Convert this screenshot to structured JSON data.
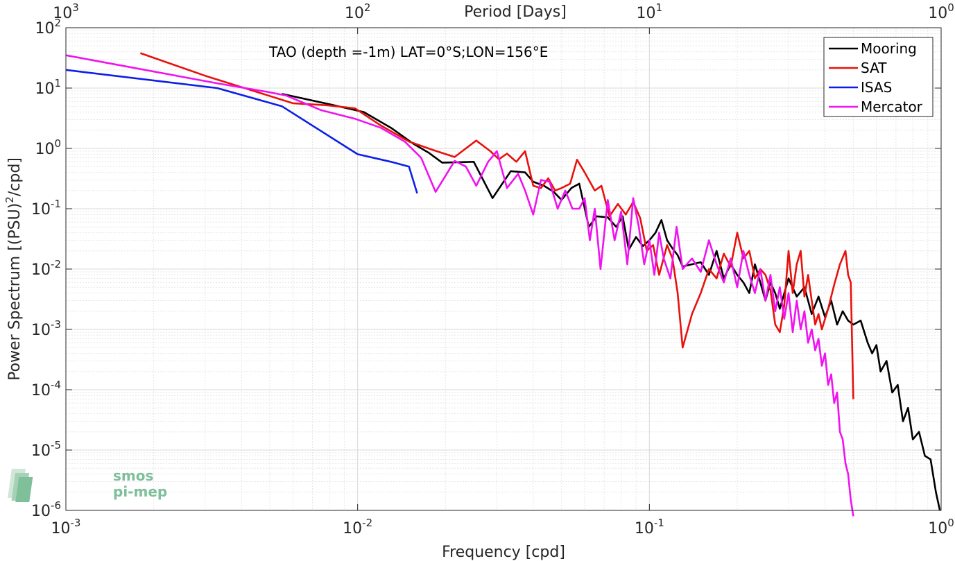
{
  "chart_data": {
    "type": "line",
    "annotation": "TAO (depth =-1m) LAT=0°S;LON=156°E",
    "xlabel": "Frequency [cpd]",
    "ylabel": "Power Spectrum [(PSU)",
    "ylabel_sup": "2",
    "ylabel_tail": "/cpd]",
    "top_label": "Period [Days]",
    "x_scale": "log",
    "y_scale": "log",
    "xlim": [
      0.001,
      1
    ],
    "ylim": [
      1e-06,
      100
    ],
    "grid": true,
    "legend_position": "top-right",
    "x_ticks": [
      {
        "base": "10",
        "exp": "-3",
        "value": 0.001
      },
      {
        "base": "10",
        "exp": "-2",
        "value": 0.01
      },
      {
        "base": "10",
        "exp": "-1",
        "value": 0.1
      },
      {
        "base": "10",
        "exp": "0",
        "value": 1
      }
    ],
    "top_ticks": [
      {
        "base": "10",
        "exp": "3",
        "value": 0.001
      },
      {
        "base": "10",
        "exp": "2",
        "value": 0.01
      },
      {
        "base": "10",
        "exp": "1",
        "value": 0.1
      },
      {
        "base": "10",
        "exp": "0",
        "value": 1
      }
    ],
    "y_ticks": [
      {
        "base": "10",
        "exp": "2",
        "value": 100
      },
      {
        "base": "10",
        "exp": "1",
        "value": 10
      },
      {
        "base": "10",
        "exp": "0",
        "value": 1
      },
      {
        "base": "10",
        "exp": "-1",
        "value": 0.1
      },
      {
        "base": "10",
        "exp": "-2",
        "value": 0.01
      },
      {
        "base": "10",
        "exp": "-3",
        "value": 0.001
      },
      {
        "base": "10",
        "exp": "-4",
        "value": 0.0001
      },
      {
        "base": "10",
        "exp": "-5",
        "value": 1e-05
      },
      {
        "base": "10",
        "exp": "-6",
        "value": 1e-06
      }
    ],
    "series": [
      {
        "name": "Mooring",
        "color": "#000000",
        "points": [
          [
            0.0055,
            8
          ],
          [
            0.008,
            5.4
          ],
          [
            0.0105,
            4
          ],
          [
            0.013,
            2.2
          ],
          [
            0.0155,
            1.2
          ],
          [
            0.0175,
            0.85
          ],
          [
            0.0195,
            0.58
          ],
          [
            0.025,
            0.6
          ],
          [
            0.029,
            0.15
          ],
          [
            0.0335,
            0.42
          ],
          [
            0.0375,
            0.4
          ],
          [
            0.04,
            0.28
          ],
          [
            0.0435,
            0.24
          ],
          [
            0.047,
            0.19
          ],
          [
            0.05,
            0.14
          ],
          [
            0.054,
            0.22
          ],
          [
            0.0575,
            0.26
          ],
          [
            0.062,
            0.05
          ],
          [
            0.066,
            0.075
          ],
          [
            0.072,
            0.072
          ],
          [
            0.077,
            0.05
          ],
          [
            0.081,
            0.075
          ],
          [
            0.085,
            0.021
          ],
          [
            0.09,
            0.034
          ],
          [
            0.095,
            0.024
          ],
          [
            0.1,
            0.03
          ],
          [
            0.105,
            0.04
          ],
          [
            0.11,
            0.065
          ],
          [
            0.115,
            0.03
          ],
          [
            0.12,
            0.022
          ],
          [
            0.125,
            0.017
          ],
          [
            0.13,
            0.011
          ],
          [
            0.14,
            0.012
          ],
          [
            0.15,
            0.013
          ],
          [
            0.16,
            0.008
          ],
          [
            0.17,
            0.02
          ],
          [
            0.18,
            0.007
          ],
          [
            0.19,
            0.012
          ],
          [
            0.2,
            0.008
          ],
          [
            0.21,
            0.006
          ],
          [
            0.22,
            0.004
          ],
          [
            0.23,
            0.012
          ],
          [
            0.24,
            0.006
          ],
          [
            0.25,
            0.003
          ],
          [
            0.26,
            0.006
          ],
          [
            0.27,
            0.004
          ],
          [
            0.28,
            0.0022
          ],
          [
            0.3,
            0.007
          ],
          [
            0.32,
            0.0035
          ],
          [
            0.34,
            0.005
          ],
          [
            0.36,
            0.0018
          ],
          [
            0.38,
            0.0035
          ],
          [
            0.4,
            0.0016
          ],
          [
            0.42,
            0.003
          ],
          [
            0.44,
            0.0012
          ],
          [
            0.46,
            0.002
          ],
          [
            0.48,
            0.0014
          ],
          [
            0.5,
            0.0012
          ],
          [
            0.53,
            0.0014
          ],
          [
            0.56,
            0.0006
          ],
          [
            0.58,
            0.0004
          ],
          [
            0.6,
            0.00055
          ],
          [
            0.62,
            0.0002
          ],
          [
            0.65,
            0.0003
          ],
          [
            0.68,
            9e-05
          ],
          [
            0.71,
            0.00012
          ],
          [
            0.74,
            3e-05
          ],
          [
            0.77,
            5e-05
          ],
          [
            0.8,
            1.5e-05
          ],
          [
            0.84,
            2e-05
          ],
          [
            0.88,
            8e-06
          ],
          [
            0.92,
            7e-06
          ],
          [
            0.96,
            2e-06
          ],
          [
            0.99,
            1e-06
          ]
        ]
      },
      {
        "name": "SAT",
        "color": "#e8110c",
        "points": [
          [
            0.0018,
            38
          ],
          [
            0.003,
            16
          ],
          [
            0.006,
            5.6
          ],
          [
            0.0078,
            5.2
          ],
          [
            0.0098,
            4.6
          ],
          [
            0.012,
            2.4
          ],
          [
            0.015,
            1.3
          ],
          [
            0.018,
            0.95
          ],
          [
            0.0215,
            0.72
          ],
          [
            0.0255,
            1.35
          ],
          [
            0.0285,
            0.9
          ],
          [
            0.0305,
            0.66
          ],
          [
            0.0325,
            0.82
          ],
          [
            0.035,
            0.6
          ],
          [
            0.0375,
            0.9
          ],
          [
            0.04,
            0.24
          ],
          [
            0.0425,
            0.22
          ],
          [
            0.045,
            0.32
          ],
          [
            0.0475,
            0.2
          ],
          [
            0.05,
            0.22
          ],
          [
            0.0535,
            0.26
          ],
          [
            0.0565,
            0.65
          ],
          [
            0.06,
            0.4
          ],
          [
            0.065,
            0.2
          ],
          [
            0.0685,
            0.24
          ],
          [
            0.073,
            0.075
          ],
          [
            0.078,
            0.12
          ],
          [
            0.083,
            0.08
          ],
          [
            0.088,
            0.13
          ],
          [
            0.093,
            0.07
          ],
          [
            0.098,
            0.02
          ],
          [
            0.103,
            0.025
          ],
          [
            0.108,
            0.008
          ],
          [
            0.115,
            0.025
          ],
          [
            0.12,
            0.015
          ],
          [
            0.125,
            0.004
          ],
          [
            0.13,
            0.0005
          ],
          [
            0.14,
            0.0018
          ],
          [
            0.15,
            0.004
          ],
          [
            0.16,
            0.01
          ],
          [
            0.17,
            0.007
          ],
          [
            0.18,
            0.018
          ],
          [
            0.19,
            0.011
          ],
          [
            0.2,
            0.04
          ],
          [
            0.21,
            0.015
          ],
          [
            0.22,
            0.02
          ],
          [
            0.23,
            0.007
          ],
          [
            0.24,
            0.01
          ],
          [
            0.25,
            0.008
          ],
          [
            0.26,
            0.0045
          ],
          [
            0.27,
            0.0012
          ],
          [
            0.28,
            0.0009
          ],
          [
            0.29,
            0.0025
          ],
          [
            0.3,
            0.02
          ],
          [
            0.31,
            0.004
          ],
          [
            0.32,
            0.012
          ],
          [
            0.33,
            0.02
          ],
          [
            0.34,
            0.0035
          ],
          [
            0.35,
            0.008
          ],
          [
            0.36,
            0.003
          ],
          [
            0.37,
            0.0012
          ],
          [
            0.38,
            0.0018
          ],
          [
            0.39,
            0.001
          ],
          [
            0.41,
            0.0022
          ],
          [
            0.43,
            0.0055
          ],
          [
            0.45,
            0.012
          ],
          [
            0.47,
            0.02
          ],
          [
            0.48,
            0.008
          ],
          [
            0.49,
            0.006
          ],
          [
            0.5,
            7e-05
          ]
        ]
      },
      {
        "name": "ISAS",
        "color": "#0c1ee8",
        "points": [
          [
            0.001,
            20
          ],
          [
            0.0033,
            10
          ],
          [
            0.0055,
            5
          ],
          [
            0.01,
            0.8
          ],
          [
            0.013,
            0.6
          ],
          [
            0.015,
            0.5
          ],
          [
            0.016,
            0.18
          ]
        ]
      },
      {
        "name": "Mercator",
        "color": "#f012f0",
        "points": [
          [
            0.001,
            35
          ],
          [
            0.0033,
            12
          ],
          [
            0.005,
            8.5
          ],
          [
            0.0057,
            7.5
          ],
          [
            0.0075,
            4.3
          ],
          [
            0.0098,
            3.1
          ],
          [
            0.012,
            2.2
          ],
          [
            0.0145,
            1.3
          ],
          [
            0.0165,
            0.7
          ],
          [
            0.0185,
            0.19
          ],
          [
            0.0215,
            0.62
          ],
          [
            0.0235,
            0.5
          ],
          [
            0.0255,
            0.24
          ],
          [
            0.028,
            0.6
          ],
          [
            0.03,
            0.9
          ],
          [
            0.0325,
            0.22
          ],
          [
            0.0355,
            0.38
          ],
          [
            0.0375,
            0.2
          ],
          [
            0.04,
            0.08
          ],
          [
            0.0425,
            0.3
          ],
          [
            0.0455,
            0.28
          ],
          [
            0.0485,
            0.1
          ],
          [
            0.0515,
            0.2
          ],
          [
            0.0545,
            0.1
          ],
          [
            0.0575,
            0.1
          ],
          [
            0.06,
            0.15
          ],
          [
            0.0625,
            0.03
          ],
          [
            0.065,
            0.1
          ],
          [
            0.068,
            0.01
          ],
          [
            0.072,
            0.14
          ],
          [
            0.076,
            0.03
          ],
          [
            0.08,
            0.09
          ],
          [
            0.084,
            0.012
          ],
          [
            0.088,
            0.15
          ],
          [
            0.092,
            0.05
          ],
          [
            0.096,
            0.012
          ],
          [
            0.1,
            0.03
          ],
          [
            0.104,
            0.008
          ],
          [
            0.108,
            0.04
          ],
          [
            0.112,
            0.015
          ],
          [
            0.118,
            0.007
          ],
          [
            0.124,
            0.05
          ],
          [
            0.13,
            0.01
          ],
          [
            0.14,
            0.015
          ],
          [
            0.15,
            0.009
          ],
          [
            0.16,
            0.03
          ],
          [
            0.17,
            0.012
          ],
          [
            0.18,
            0.006
          ],
          [
            0.19,
            0.015
          ],
          [
            0.2,
            0.005
          ],
          [
            0.21,
            0.02
          ],
          [
            0.22,
            0.008
          ],
          [
            0.23,
            0.004
          ],
          [
            0.24,
            0.01
          ],
          [
            0.25,
            0.003
          ],
          [
            0.26,
            0.008
          ],
          [
            0.27,
            0.002
          ],
          [
            0.28,
            0.005
          ],
          [
            0.29,
            0.0015
          ],
          [
            0.3,
            0.004
          ],
          [
            0.31,
            0.0009
          ],
          [
            0.32,
            0.003
          ],
          [
            0.33,
            0.001
          ],
          [
            0.34,
            0.002
          ],
          [
            0.35,
            0.0006
          ],
          [
            0.36,
            0.001
          ],
          [
            0.37,
            0.00045
          ],
          [
            0.38,
            0.0007
          ],
          [
            0.39,
            0.00025
          ],
          [
            0.4,
            0.0004
          ],
          [
            0.41,
            0.00012
          ],
          [
            0.42,
            0.00018
          ],
          [
            0.43,
            6e-05
          ],
          [
            0.44,
            9e-05
          ],
          [
            0.45,
            2e-05
          ],
          [
            0.46,
            1.5e-05
          ],
          [
            0.47,
            6e-06
          ],
          [
            0.48,
            4e-06
          ],
          [
            0.49,
            1.5e-06
          ],
          [
            0.5,
            8e-07
          ]
        ]
      }
    ]
  },
  "logo": {
    "line1": "smos",
    "line2": "pi-mep"
  }
}
